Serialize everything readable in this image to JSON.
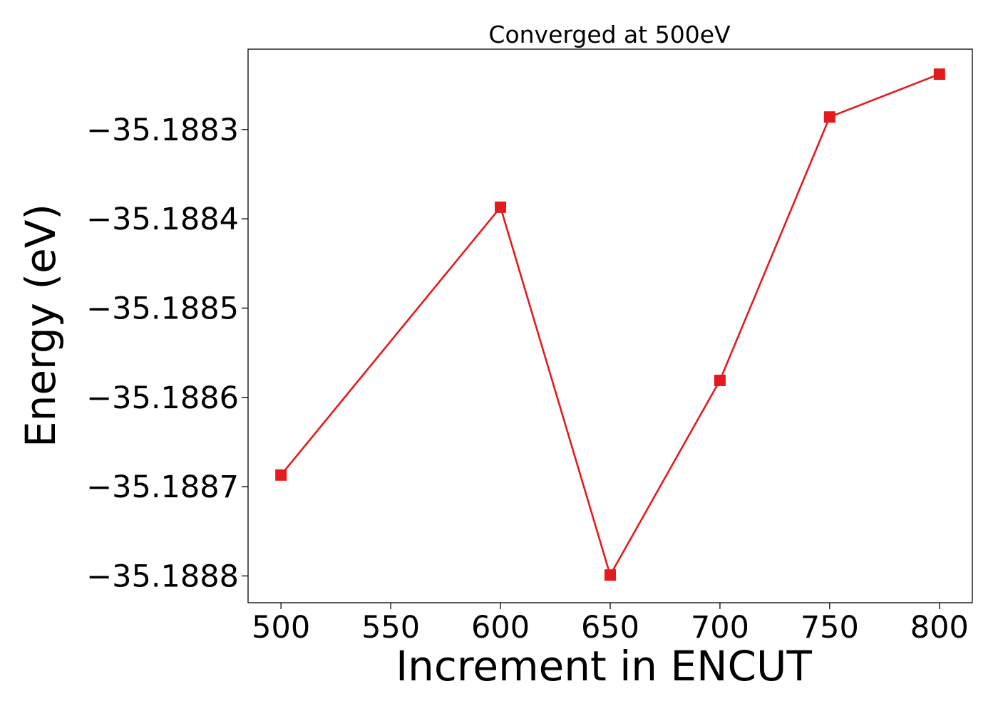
{
  "chart_data": {
    "type": "line",
    "title": "Converged at 500eV",
    "xlabel": "Increment in ENCUT",
    "ylabel": "Energy (eV)",
    "x": [
      500,
      600,
      650,
      700,
      750,
      800
    ],
    "series": [
      {
        "values": [
          -35.188687,
          -35.188387,
          -35.188799,
          -35.188581,
          -35.188286,
          -35.188238
        ],
        "color": "#e41a1c",
        "marker": "square"
      }
    ],
    "xlim": [
      485,
      815
    ],
    "ylim": [
      -35.18883,
      -35.18821
    ],
    "xticks": [
      500,
      550,
      600,
      650,
      700,
      750,
      800
    ],
    "xtick_labels": [
      "500",
      "550",
      "600",
      "650",
      "700",
      "750",
      "800"
    ],
    "yticks": [
      -35.1888,
      -35.1887,
      -35.1886,
      -35.1885,
      -35.1884,
      -35.1883
    ],
    "ytick_labels": [
      "−35.1888",
      "−35.1887",
      "−35.1886",
      "−35.1885",
      "−35.1884",
      "−35.1883"
    ],
    "grid": false,
    "legend": "none"
  }
}
